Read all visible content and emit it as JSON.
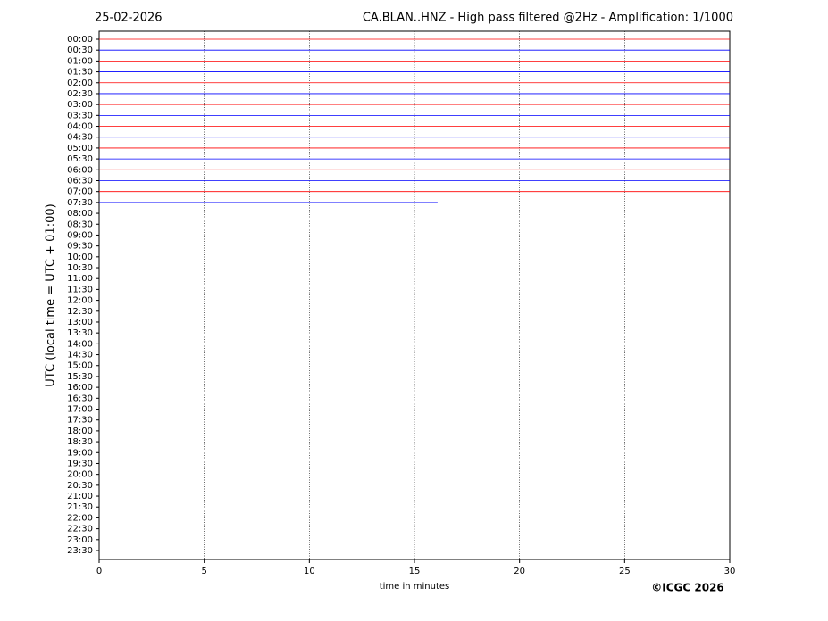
{
  "chart_data": {
    "type": "helicorder",
    "date": "25-02-2026",
    "title": "CA.BLAN..HNZ - High pass filtered @2Hz - Amplification: 1/1000",
    "xlabel": "time in minutes",
    "ylabel": "UTC (local time = UTC + 01:00)",
    "copyright": "©ICGC 2026",
    "categories": [
      "00:00",
      "00:30",
      "01:00",
      "01:30",
      "02:00",
      "02:30",
      "03:00",
      "03:30",
      "04:00",
      "04:30",
      "05:00",
      "05:30",
      "06:00",
      "06:30",
      "07:00",
      "07:30",
      "08:00",
      "08:30",
      "09:00",
      "09:30",
      "10:00",
      "10:30",
      "11:00",
      "11:30",
      "12:00",
      "12:30",
      "13:00",
      "13:30",
      "14:00",
      "14:30",
      "15:00",
      "15:30",
      "16:00",
      "16:30",
      "17:00",
      "17:30",
      "18:00",
      "18:30",
      "19:00",
      "19:30",
      "20:00",
      "20:30",
      "21:00",
      "21:30",
      "22:00",
      "22:30",
      "23:00",
      "23:30"
    ],
    "xlim": [
      0,
      30
    ],
    "xticks": [
      0,
      5,
      10,
      15,
      20,
      25,
      30
    ],
    "grid": true,
    "colors": [
      "#ff0000",
      "#0000ff"
    ],
    "trace_end": [
      30,
      30,
      30,
      30,
      30,
      30,
      30,
      30,
      30,
      30,
      30,
      30,
      30,
      30,
      30,
      16.1
    ]
  }
}
